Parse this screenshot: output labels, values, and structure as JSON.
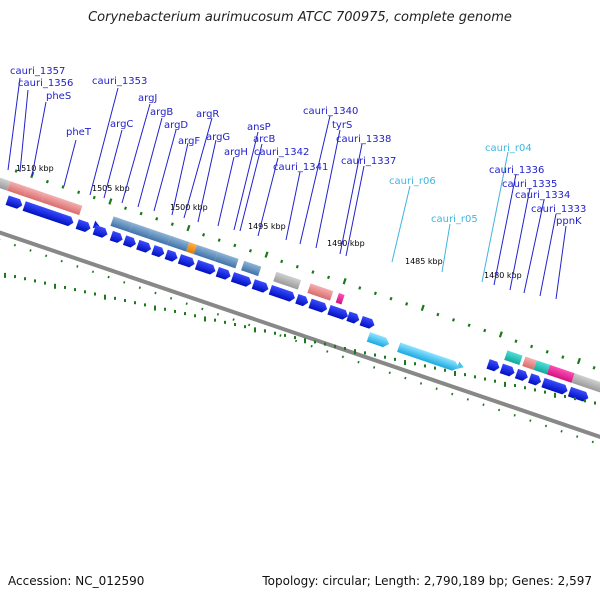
{
  "title": "Corynebacterium aurimucosum ATCC 700975, complete genome",
  "footer": {
    "accession": "Accession: NC_012590",
    "topology": "Topology: circular; Length: 2,790,189 bp; Genes: 2,597"
  },
  "axis": {
    "ticks": [
      "1510 kbp",
      "1505 kbp",
      "1500 kbp",
      "1495 kbp",
      "1490 kbp",
      "1485 kbp",
      "1480 kbp"
    ]
  },
  "gene_labels": [
    "cauri_1357",
    "cauri_1356",
    "pheS",
    "pheT",
    "cauri_1353",
    "argC",
    "argJ",
    "argB",
    "argD",
    "argF",
    "argR",
    "argG",
    "argH",
    "ansP",
    "arcB",
    "cauri_1342",
    "cauri_1341",
    "cauri_1340",
    "tyrS",
    "cauri_1338",
    "cauri_1337",
    "cauri_r06",
    "cauri_r05",
    "cauri_r04",
    "cauri_1336",
    "cauri_1335",
    "cauri_1334",
    "cauri_1333",
    "ppnK"
  ],
  "colors": {
    "cds": "#0b1ee6",
    "rna": "#44c6f0",
    "backbone": "#888888",
    "tick_mark": "#1a7a1a",
    "label_gene": "#2222cc",
    "label_rna": "#3fb5e0"
  }
}
